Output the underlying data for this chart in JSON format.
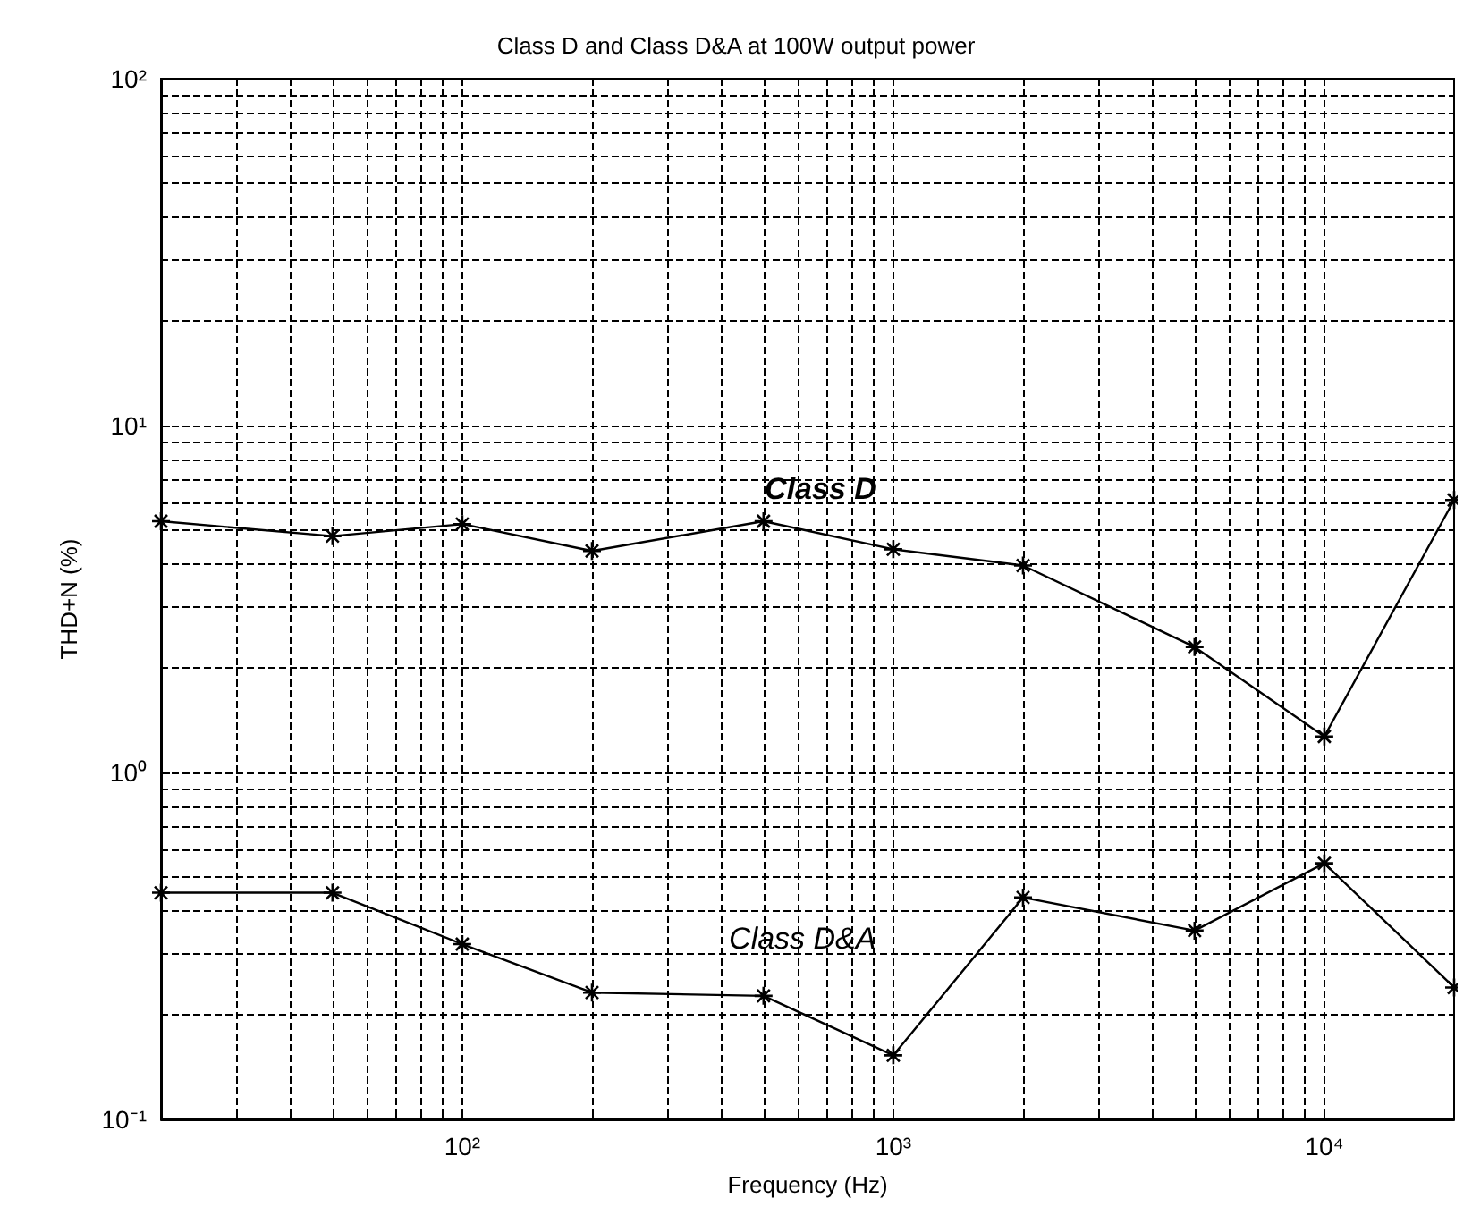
{
  "chart_data": {
    "type": "line",
    "title": "Class D and Class D&A at 100W output power",
    "xlabel": "Frequency (Hz)",
    "ylabel": "THD+N (%)",
    "log": "xy",
    "grid": true,
    "x": [
      20,
      50,
      100,
      200,
      500,
      1000,
      2000,
      5000,
      10000,
      20000
    ],
    "xlim": [
      20,
      20000
    ],
    "xticks": [
      {
        "value": 100,
        "label": "10²"
      },
      {
        "value": 1000,
        "label": "10³"
      },
      {
        "value": 10000,
        "label": "10⁴"
      }
    ],
    "ylim": [
      0.1,
      100
    ],
    "yticks": [
      {
        "value": 0.1,
        "label": "10⁻¹"
      },
      {
        "value": 1,
        "label": "10⁰"
      },
      {
        "value": 10,
        "label": "10¹"
      },
      {
        "value": 100,
        "label": "10²"
      }
    ],
    "series": [
      {
        "name": "Class D",
        "color": "#000000",
        "marker": "cross",
        "values": [
          5.3,
          4.8,
          5.2,
          4.35,
          5.3,
          4.4,
          3.95,
          2.3,
          1.27,
          6.1
        ]
      },
      {
        "name": "Class D&A",
        "color": "#000000",
        "marker": "cross",
        "values": [
          0.45,
          0.45,
          0.32,
          0.232,
          0.227,
          0.153,
          0.436,
          0.35,
          0.547,
          0.24
        ]
      }
    ]
  }
}
